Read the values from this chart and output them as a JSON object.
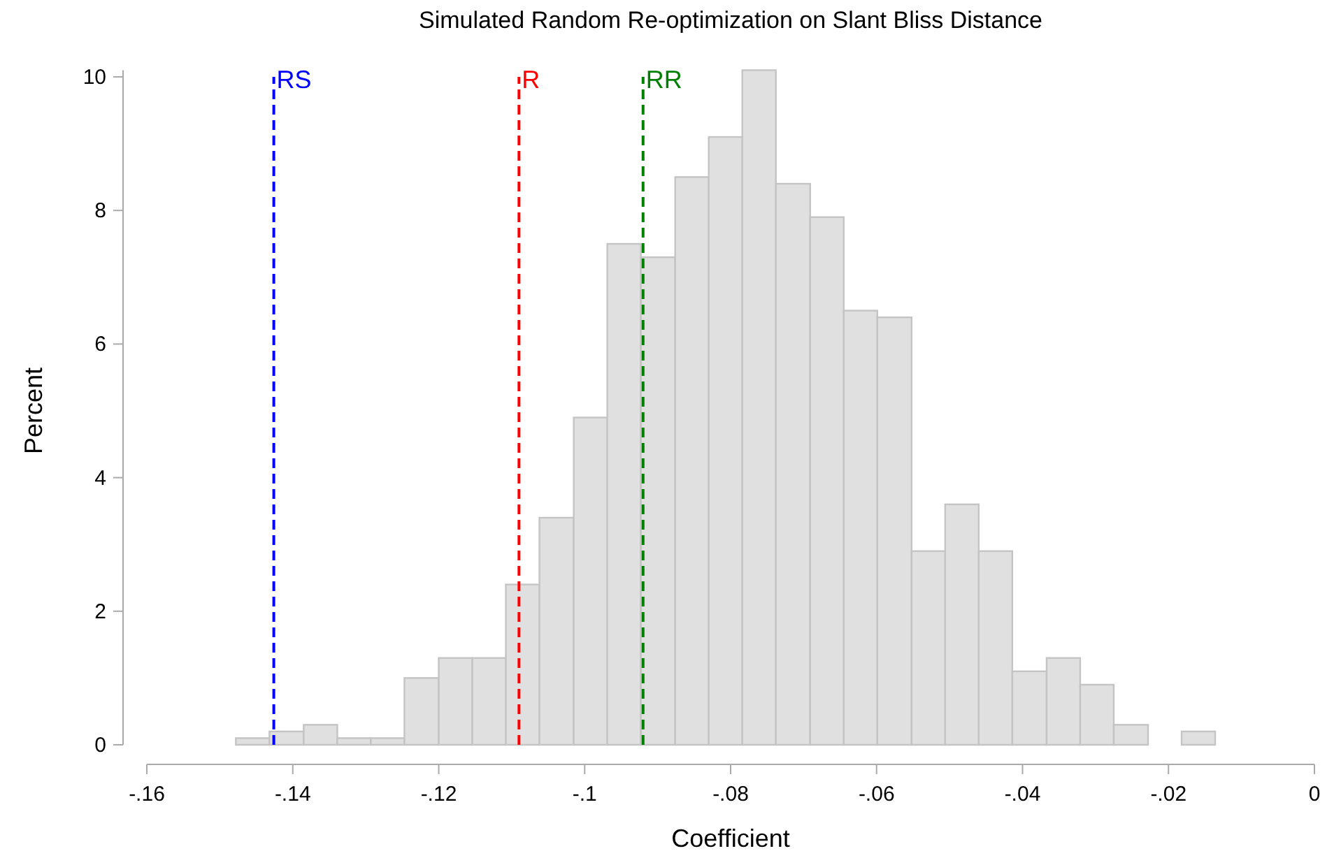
{
  "chart_data": {
    "type": "histogram",
    "title": "Simulated Random Re-optimization on Slant Bliss Distance",
    "xlabel": "Coefficient",
    "ylabel": "Percent",
    "bins": [
      -0.1478,
      -0.1432,
      -0.1385,
      -0.1339,
      -0.1293,
      -0.1247,
      -0.12,
      -0.1154,
      -0.1108,
      -0.1062,
      -0.1015,
      -0.0969,
      -0.0923,
      -0.0876,
      -0.083,
      -0.0784,
      -0.0738,
      -0.0691,
      -0.0645,
      -0.0599,
      -0.0552,
      -0.0506,
      -0.046,
      -0.0414,
      -0.0367,
      -0.0321,
      -0.0275,
      -0.0228,
      -0.0182,
      -0.0136
    ],
    "values": [
      0.1,
      0.2,
      0.3,
      0.1,
      0.1,
      1.0,
      1.3,
      1.3,
      2.4,
      3.4,
      4.9,
      7.5,
      7.3,
      8.5,
      9.1,
      10.1,
      8.4,
      7.9,
      6.5,
      6.4,
      2.9,
      3.6,
      2.9,
      1.1,
      1.3,
      0.9,
      0.3,
      0,
      0.2
    ],
    "color": "#e0e0e0",
    "xlim": [
      -0.16,
      0
    ],
    "xticks": [
      {
        "value": -0.16,
        "label": "-.16"
      },
      {
        "value": -0.14,
        "label": "-.14"
      },
      {
        "value": -0.12,
        "label": "-.12"
      },
      {
        "value": -0.1,
        "label": "-.1"
      },
      {
        "value": -0.08,
        "label": "-.08"
      },
      {
        "value": -0.06,
        "label": "-.06"
      },
      {
        "value": -0.04,
        "label": "-.04"
      },
      {
        "value": -0.02,
        "label": "-.02"
      },
      0
    ],
    "ylim": [
      0,
      10.1
    ],
    "yticks": [
      0,
      2,
      4,
      6,
      8,
      10
    ],
    "grid": false,
    "ref_lines": [
      {
        "axis": "x",
        "value": -0.1426,
        "label": "RS",
        "color": "#0000ff",
        "line_style": "dashed"
      },
      {
        "axis": "x",
        "value": -0.109,
        "label": "R",
        "color": "#ff0000",
        "line_style": "dashed"
      },
      {
        "axis": "x",
        "value": -0.092,
        "label": "RR",
        "color": "#008000",
        "line_style": "dashed"
      }
    ]
  }
}
